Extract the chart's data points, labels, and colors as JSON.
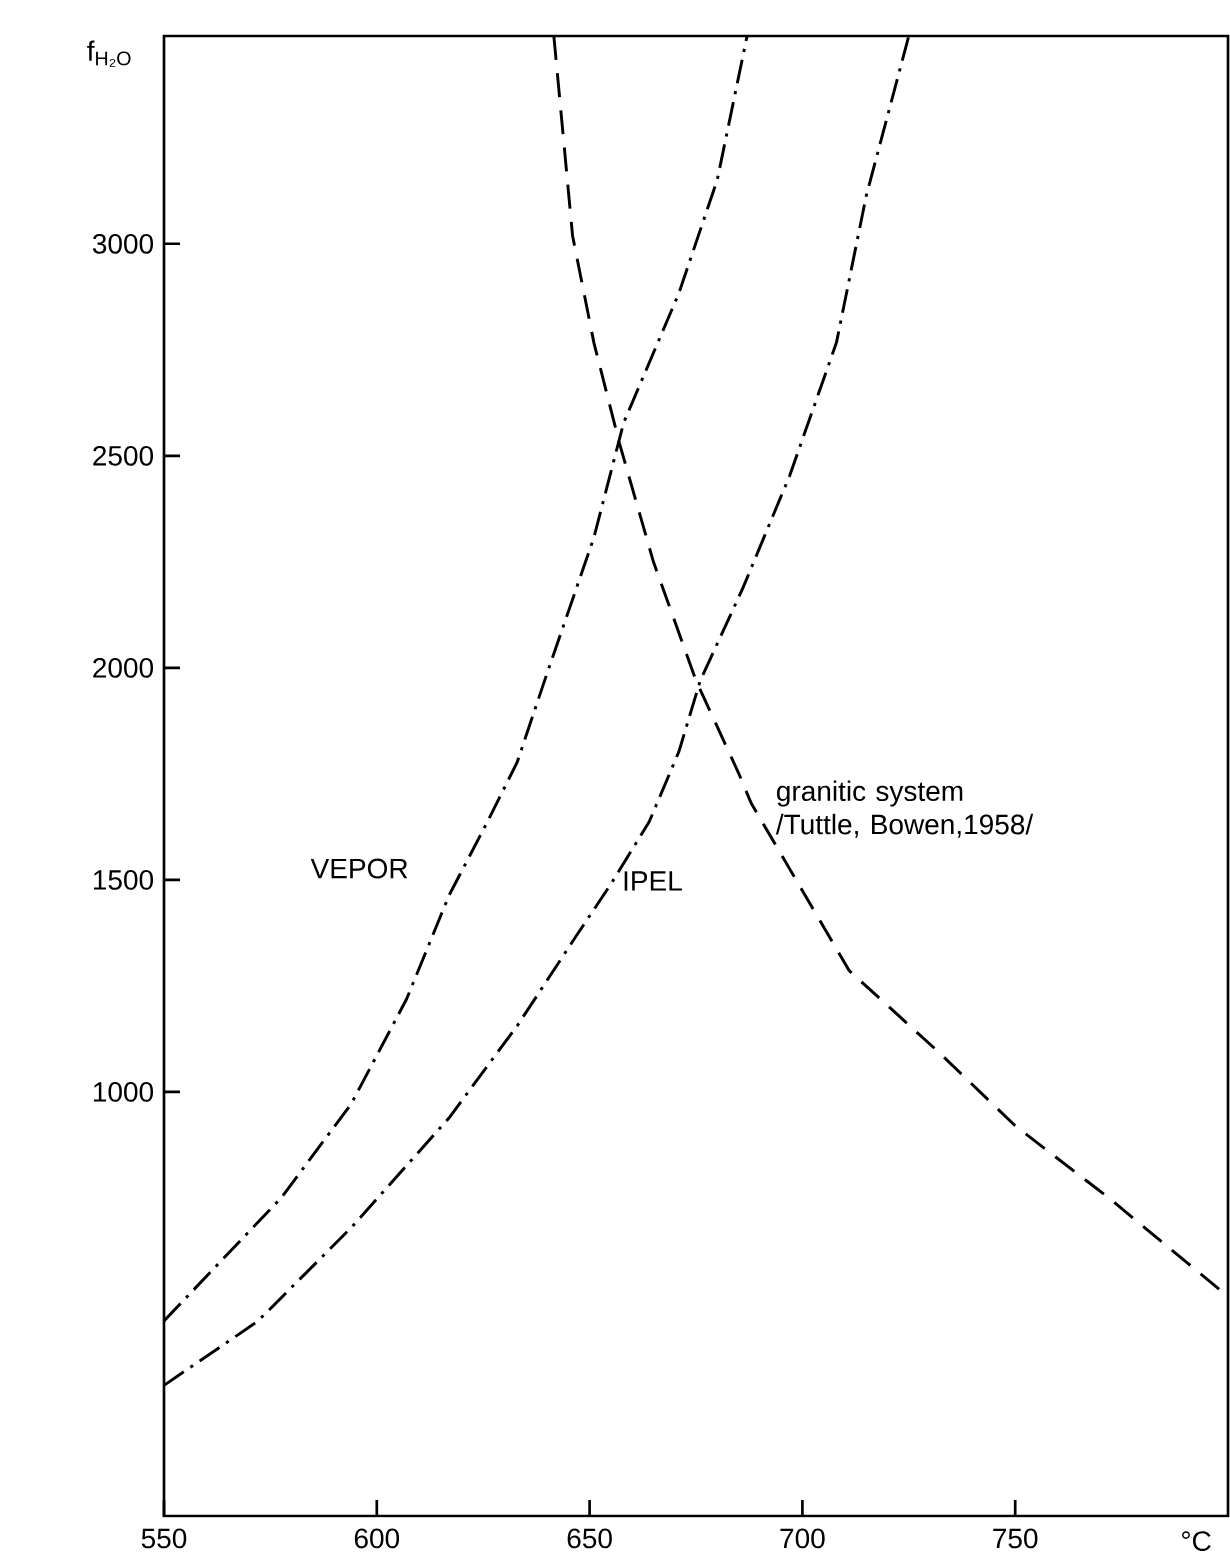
{
  "chart_data": {
    "type": "line",
    "xlabel": "°C",
    "ylabel": "f$_{H₂O}$",
    "xlim": [
      550,
      800
    ],
    "ylim": [
      0,
      3490
    ],
    "xticks": [
      550,
      600,
      650,
      700,
      750
    ],
    "yticks": [
      1000,
      1500,
      2000,
      2500,
      3000
    ],
    "marker": "none",
    "series": [
      {
        "name": "VEPOR",
        "color": "#000000",
        "line_style": "dashdot",
        "x": [
          550,
          577.6,
          594,
          607,
          617,
          626,
          633,
          640,
          651,
          658,
          671,
          680,
          687
        ],
        "values": [
          460,
          751,
          972,
          1219,
          1464,
          1637,
          1778,
          1987,
          2307,
          2578,
          2884,
          3151,
          3490
        ]
      },
      {
        "name": "IPEL",
        "color": "#000000",
        "line_style": "dashdot",
        "x": [
          550,
          572,
          594,
          617,
          633,
          647,
          655,
          664,
          671,
          676,
          686,
          697,
          708,
          715,
          725
        ],
        "values": [
          308,
          459,
          680,
          939,
          1156,
          1370,
          1490,
          1637,
          1803,
          1970,
          2188,
          2453,
          2767,
          3113,
          3490
        ]
      },
      {
        "name": "granitic system /Tuttle, Bowen,1958/",
        "color": "#000000",
        "line_style": "dashed",
        "x": [
          641.6,
          646,
          651,
          657,
          665,
          675,
          685,
          688,
          697,
          711,
          732,
          750,
          772,
          798.6
        ],
        "values": [
          3490,
          3019,
          2767,
          2530,
          2250,
          1970,
          1752,
          1680,
          1526,
          1286,
          1094,
          920,
          750,
          529
        ]
      }
    ]
  }
}
